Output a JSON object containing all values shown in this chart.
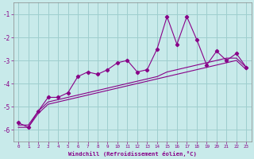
{
  "background_color": "#c8eaea",
  "grid_color": "#9ecece",
  "line_color": "#880088",
  "marker_color": "#880088",
  "xlabel": "Windchill (Refroidissement éolien,°C)",
  "xlabel_color": "#880088",
  "tick_color": "#880088",
  "xlim": [
    -0.5,
    23.5
  ],
  "ylim": [
    -6.5,
    -0.5
  ],
  "yticks": [
    -6,
    -5,
    -4,
    -3,
    -2,
    -1
  ],
  "xticks": [
    0,
    1,
    2,
    3,
    4,
    5,
    6,
    7,
    8,
    9,
    10,
    11,
    12,
    13,
    14,
    15,
    16,
    17,
    18,
    19,
    20,
    21,
    22,
    23
  ],
  "series1_x": [
    0,
    1,
    2,
    3,
    4,
    5,
    6,
    7,
    8,
    9,
    10,
    11,
    12,
    13,
    14,
    15,
    16,
    17,
    18,
    19,
    20,
    21,
    22,
    23
  ],
  "series1_y": [
    -5.7,
    -5.9,
    -5.2,
    -4.6,
    -4.6,
    -4.4,
    -3.7,
    -3.5,
    -3.6,
    -3.4,
    -3.1,
    -3.0,
    -3.5,
    -3.4,
    -2.5,
    -1.1,
    -2.3,
    -1.1,
    -2.1,
    -3.2,
    -2.6,
    -3.0,
    -2.7,
    -3.3
  ],
  "series2_x": [
    0,
    1,
    2,
    3,
    4,
    5,
    6,
    7,
    8,
    9,
    10,
    11,
    12,
    13,
    14,
    15,
    16,
    17,
    18,
    19,
    20,
    21,
    22,
    23
  ],
  "series2_y": [
    -5.8,
    -5.8,
    -5.2,
    -4.8,
    -4.7,
    -4.6,
    -4.5,
    -4.4,
    -4.3,
    -4.2,
    -4.1,
    -4.0,
    -3.9,
    -3.8,
    -3.7,
    -3.5,
    -3.4,
    -3.3,
    -3.2,
    -3.1,
    -3.0,
    -2.9,
    -2.9,
    -3.3
  ],
  "series3_x": [
    0,
    1,
    2,
    3,
    4,
    5,
    6,
    7,
    8,
    9,
    10,
    11,
    12,
    13,
    14,
    15,
    16,
    17,
    18,
    19,
    20,
    21,
    22,
    23
  ],
  "series3_y": [
    -5.9,
    -5.9,
    -5.3,
    -4.9,
    -4.8,
    -4.7,
    -4.6,
    -4.5,
    -4.4,
    -4.3,
    -4.2,
    -4.1,
    -4.0,
    -3.9,
    -3.8,
    -3.7,
    -3.6,
    -3.5,
    -3.4,
    -3.3,
    -3.2,
    -3.1,
    -3.0,
    -3.4
  ]
}
